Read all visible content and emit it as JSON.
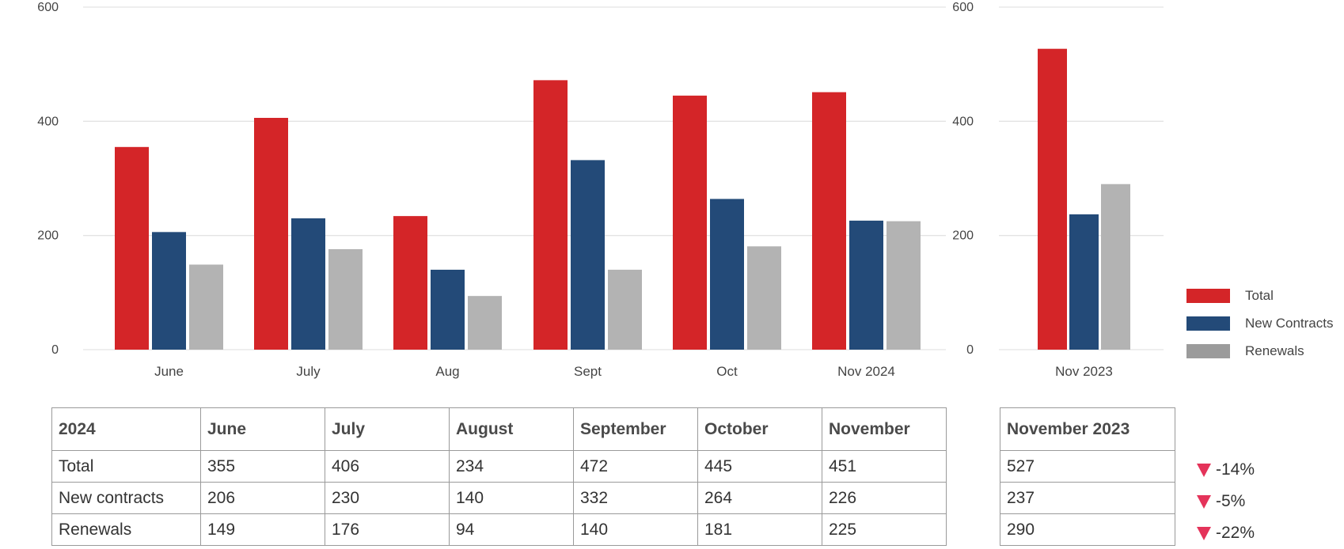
{
  "chart_data": [
    {
      "type": "bar",
      "categories": [
        "June",
        "July",
        "Aug",
        "Sept",
        "Oct",
        "Nov 2024"
      ],
      "series": [
        {
          "name": "Total",
          "values": [
            355,
            406,
            234,
            472,
            445,
            451
          ]
        },
        {
          "name": "New Contracts",
          "values": [
            206,
            230,
            140,
            332,
            264,
            226
          ]
        },
        {
          "name": "Renewals",
          "values": [
            149,
            176,
            94,
            140,
            181,
            225
          ]
        }
      ],
      "yticks": [
        0,
        200,
        400,
        600
      ],
      "ylim": [
        0,
        600
      ],
      "grid": true
    },
    {
      "type": "bar",
      "categories": [
        "Nov 2023"
      ],
      "series": [
        {
          "name": "Total",
          "values": [
            527
          ]
        },
        {
          "name": "New Contracts",
          "values": [
            237
          ]
        },
        {
          "name": "Renewals",
          "values": [
            290
          ]
        }
      ],
      "yticks": [
        0,
        200,
        400,
        600
      ],
      "ylim": [
        0,
        600
      ],
      "grid": true
    }
  ],
  "colors": {
    "Total": "#d42528",
    "New Contracts": "#234a78",
    "Renewals": "#b3b3b3",
    "legend_renewals": "#9b9b9b",
    "down_arrow": "#e4335a"
  },
  "legend": {
    "position": "right",
    "items": [
      {
        "label": "Total",
        "color": "#d42528"
      },
      {
        "label": "New Contracts",
        "color": "#234a78"
      },
      {
        "label": "Renewals",
        "color": "#9b9b9b"
      }
    ]
  },
  "table_2024": {
    "headers": [
      "2024",
      "June",
      "July",
      "August",
      "September",
      "October",
      "November"
    ],
    "rows": [
      [
        "Total",
        "355",
        "406",
        "234",
        "472",
        "445",
        "451"
      ],
      [
        "New contracts",
        "206",
        "230",
        "140",
        "332",
        "264",
        "226"
      ],
      [
        "Renewals",
        "149",
        "176",
        "94",
        "140",
        "181",
        "225"
      ]
    ]
  },
  "table_2023": {
    "header": "November 2023",
    "rows": [
      "527",
      "237",
      "290"
    ]
  },
  "changes": [
    "-14%",
    "-5%",
    "-22%"
  ]
}
